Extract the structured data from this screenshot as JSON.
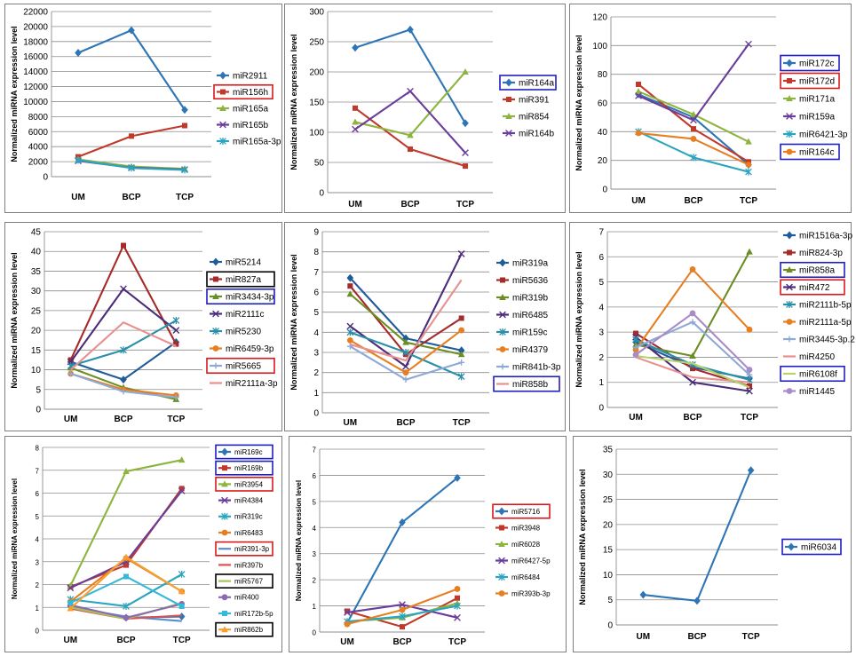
{
  "x_categories": [
    "UM",
    "BCP",
    "TCP"
  ],
  "ylabel": "Normalized miRNA expression level",
  "chart_data": [
    {
      "type": "line",
      "ylim": [
        0,
        22000
      ],
      "ytick_step": 2000,
      "categories": [
        "UM",
        "BCP",
        "TCP"
      ],
      "ylabel": "Normalized miRNA expression level",
      "series": [
        {
          "name": "miR2911",
          "color": "#2E75B6",
          "marker": "diamond",
          "values": [
            16500,
            19500,
            8900
          ],
          "highlight": null
        },
        {
          "name": "miR156h",
          "color": "#C0392B",
          "marker": "square",
          "values": [
            2650,
            5400,
            6800
          ],
          "highlight": "red"
        },
        {
          "name": "miR165a",
          "color": "#8DB43E",
          "marker": "triangle",
          "values": [
            2300,
            1350,
            1050
          ],
          "highlight": null
        },
        {
          "name": "miR165b",
          "color": "#6A3D9A",
          "marker": "x",
          "values": [
            2100,
            1200,
            950
          ],
          "highlight": null
        },
        {
          "name": "miR165a-3p",
          "color": "#2AA5C0",
          "marker": "star",
          "values": [
            2200,
            1150,
            900
          ],
          "highlight": null
        }
      ]
    },
    {
      "type": "line",
      "ylim": [
        0,
        300
      ],
      "ytick_step": 50,
      "categories": [
        "UM",
        "BCP",
        "TCP"
      ],
      "ylabel": "Normalized miRNA expression level",
      "series": [
        {
          "name": "miR164a",
          "color": "#2E75B6",
          "marker": "diamond",
          "values": [
            240,
            270,
            115
          ],
          "highlight": "blue"
        },
        {
          "name": "miR391",
          "color": "#C0392B",
          "marker": "square",
          "values": [
            140,
            72,
            44
          ],
          "highlight": null
        },
        {
          "name": "miR854",
          "color": "#8DB43E",
          "marker": "triangle",
          "values": [
            117,
            95,
            200
          ],
          "highlight": null
        },
        {
          "name": "miR164b",
          "color": "#6A3D9A",
          "marker": "x",
          "values": [
            105,
            168,
            66
          ],
          "highlight": null
        }
      ]
    },
    {
      "type": "line",
      "ylim": [
        0,
        120
      ],
      "ytick_step": 20,
      "categories": [
        "UM",
        "BCP",
        "TCP"
      ],
      "ylabel": "Normalized miRNA expression level",
      "series": [
        {
          "name": "miR172c",
          "color": "#2E75B6",
          "marker": "diamond",
          "values": [
            66,
            50,
            17
          ],
          "highlight": "blue"
        },
        {
          "name": "miR172d",
          "color": "#C0392B",
          "marker": "square",
          "values": [
            73,
            42,
            19
          ],
          "highlight": "red"
        },
        {
          "name": "miR171a",
          "color": "#8DB43E",
          "marker": "triangle",
          "values": [
            68,
            52,
            33
          ],
          "highlight": null
        },
        {
          "name": "miR159a",
          "color": "#6A3D9A",
          "marker": "x",
          "values": [
            65,
            48,
            101
          ],
          "highlight": null
        },
        {
          "name": "miR6421-3p",
          "color": "#2AA5C0",
          "marker": "star",
          "values": [
            40,
            22,
            12
          ],
          "highlight": null
        },
        {
          "name": "miR164c",
          "color": "#E67E22",
          "marker": "circle",
          "values": [
            39,
            35,
            17
          ],
          "highlight": "blue"
        }
      ]
    },
    {
      "type": "line",
      "ylim": [
        0,
        45
      ],
      "ytick_step": 5,
      "categories": [
        "UM",
        "BCP",
        "TCP"
      ],
      "ylabel": "Normalized miRNA expression level",
      "series": [
        {
          "name": "miR5214",
          "color": "#1F5C99",
          "marker": "diamond",
          "values": [
            12,
            7.5,
            17
          ],
          "highlight": null
        },
        {
          "name": "miR827a",
          "color": "#A52A2A",
          "marker": "square",
          "values": [
            12.5,
            41.5,
            16.5
          ],
          "highlight": "black"
        },
        {
          "name": "miR3434-3p",
          "color": "#6B8E23",
          "marker": "triangle",
          "values": [
            10.5,
            5.5,
            2.5
          ],
          "highlight": "blue"
        },
        {
          "name": "miR2111c",
          "color": "#4B2C7A",
          "marker": "x",
          "values": [
            12,
            30.5,
            20
          ],
          "highlight": null
        },
        {
          "name": "miR5230",
          "color": "#2A8FA8",
          "marker": "star",
          "values": [
            11,
            15,
            22.5
          ],
          "highlight": null
        },
        {
          "name": "miR6459-3p",
          "color": "#E67E22",
          "marker": "circle",
          "values": [
            9,
            5,
            3.5
          ],
          "highlight": null
        },
        {
          "name": "miR5665",
          "color": "#8DA9D6",
          "marker": "plus",
          "values": [
            9,
            4.5,
            3
          ],
          "highlight": "red"
        },
        {
          "name": "miR2111a-3p",
          "color": "#E89090",
          "marker": "none",
          "values": [
            10,
            22,
            16
          ],
          "highlight": null
        }
      ]
    },
    {
      "type": "line",
      "ylim": [
        0,
        9
      ],
      "ytick_step": 1,
      "categories": [
        "UM",
        "BCP",
        "TCP"
      ],
      "ylabel": "Normalized miRNA expression level",
      "series": [
        {
          "name": "miR319a",
          "color": "#1F5C99",
          "marker": "diamond",
          "values": [
            6.7,
            3.7,
            3.1
          ],
          "highlight": null
        },
        {
          "name": "miR5636",
          "color": "#A52A2A",
          "marker": "square",
          "values": [
            6.3,
            2.9,
            4.7
          ],
          "highlight": null
        },
        {
          "name": "miR319b",
          "color": "#6B8E23",
          "marker": "triangle",
          "values": [
            5.9,
            3.5,
            2.9
          ],
          "highlight": null
        },
        {
          "name": "miR6485",
          "color": "#4B2C7A",
          "marker": "x",
          "values": [
            4.3,
            2.3,
            7.9
          ],
          "highlight": null
        },
        {
          "name": "miR159c",
          "color": "#2A8FA8",
          "marker": "star",
          "values": [
            4.0,
            3.0,
            1.8
          ],
          "highlight": null
        },
        {
          "name": "miR4379",
          "color": "#E67E22",
          "marker": "circle",
          "values": [
            3.6,
            2.0,
            4.1
          ],
          "highlight": null
        },
        {
          "name": "miR841b-3p",
          "color": "#8DA9D6",
          "marker": "plus",
          "values": [
            3.3,
            1.65,
            2.5
          ],
          "highlight": null
        },
        {
          "name": "miR858b",
          "color": "#E89090",
          "marker": "none",
          "values": [
            3.4,
            2.6,
            6.6
          ],
          "highlight": "blue"
        }
      ]
    },
    {
      "type": "line",
      "ylim": [
        0,
        7
      ],
      "ytick_step": 1,
      "categories": [
        "UM",
        "BCP",
        "TCP"
      ],
      "ylabel": "Normalized miRNA expression level",
      "series": [
        {
          "name": "miR1516a-3p",
          "color": "#1F5C99",
          "marker": "diamond",
          "values": [
            2.6,
            1.6,
            1.15
          ],
          "highlight": null
        },
        {
          "name": "miR824-3p",
          "color": "#A52A2A",
          "marker": "square",
          "values": [
            2.95,
            1.55,
            0.85
          ],
          "highlight": null
        },
        {
          "name": "miR858a",
          "color": "#6B8E23",
          "marker": "triangle",
          "values": [
            2.5,
            2.05,
            6.2
          ],
          "highlight": "blue"
        },
        {
          "name": "miR472",
          "color": "#4B2C7A",
          "marker": "x",
          "values": [
            2.8,
            1.0,
            0.65
          ],
          "highlight": "red"
        },
        {
          "name": "miR2111b-5p",
          "color": "#2A8FA8",
          "marker": "star",
          "values": [
            2.7,
            1.7,
            1.1
          ],
          "highlight": null
        },
        {
          "name": "miR2111a-5p",
          "color": "#E67E22",
          "marker": "circle",
          "values": [
            2.3,
            5.5,
            3.1
          ],
          "highlight": null
        },
        {
          "name": "miR3445-3p.2",
          "color": "#8DA9D6",
          "marker": "plus",
          "values": [
            2.4,
            3.4,
            1.3
          ],
          "highlight": null
        },
        {
          "name": "miR4250",
          "color": "#E89090",
          "marker": "none",
          "values": [
            2.0,
            1.2,
            1.0
          ],
          "highlight": null
        },
        {
          "name": "miR6108f",
          "color": "#B5D36B",
          "marker": "none",
          "values": [
            2.05,
            1.75,
            0.8
          ],
          "highlight": "blue"
        },
        {
          "name": "miR1445",
          "color": "#A88BC7",
          "marker": "circle",
          "values": [
            2.1,
            3.75,
            1.5
          ],
          "highlight": null
        }
      ]
    },
    {
      "type": "line",
      "ylim": [
        0,
        8
      ],
      "ytick_step": 1,
      "categories": [
        "UM",
        "BCP",
        "TCP"
      ],
      "ylabel": "Normalized miRNA expression level",
      "series": [
        {
          "name": "miR169c",
          "color": "#2E75B6",
          "marker": "diamond",
          "values": [
            1.05,
            0.55,
            0.6
          ],
          "highlight": "blue"
        },
        {
          "name": "miR169b",
          "color": "#C0392B",
          "marker": "square",
          "values": [
            1.9,
            2.85,
            6.2
          ],
          "highlight": "blue"
        },
        {
          "name": "miR3954",
          "color": "#8DB43E",
          "marker": "triangle",
          "values": [
            1.95,
            6.95,
            7.45
          ],
          "highlight": "red"
        },
        {
          "name": "miR4384",
          "color": "#6A3D9A",
          "marker": "x",
          "values": [
            1.85,
            3.0,
            6.1
          ],
          "highlight": null
        },
        {
          "name": "miR319c",
          "color": "#2AA5C0",
          "marker": "star",
          "values": [
            1.35,
            1.05,
            2.45
          ],
          "highlight": null
        },
        {
          "name": "miR6483",
          "color": "#E67E22",
          "marker": "circle",
          "values": [
            1.25,
            3.15,
            1.7
          ],
          "highlight": null
        },
        {
          "name": "miR391-3p",
          "color": "#5B8DD1",
          "marker": "none",
          "values": [
            1.0,
            0.6,
            0.4
          ],
          "highlight": "red"
        },
        {
          "name": "miR397b",
          "color": "#E05050",
          "marker": "none",
          "values": [
            0.95,
            0.5,
            0.65
          ],
          "highlight": null
        },
        {
          "name": "miR5767",
          "color": "#A5C55A",
          "marker": "none",
          "values": [
            1.0,
            0.5,
            1.2
          ],
          "highlight": "black"
        },
        {
          "name": "miR400",
          "color": "#8A6AB0",
          "marker": "circle",
          "values": [
            1.1,
            0.55,
            1.15
          ],
          "highlight": null
        },
        {
          "name": "miR172b-5p",
          "color": "#36B8D9",
          "marker": "square",
          "values": [
            1.2,
            2.35,
            1.05
          ],
          "highlight": null
        },
        {
          "name": "miR862b",
          "color": "#F5A030",
          "marker": "triangle",
          "values": [
            0.95,
            3.2,
            1.7
          ],
          "highlight": "black"
        }
      ]
    },
    {
      "type": "line",
      "ylim": [
        0,
        7
      ],
      "ytick_step": 1,
      "categories": [
        "UM",
        "BCP",
        "TCP"
      ],
      "ylabel": "Normalized miRNA expression level",
      "series": [
        {
          "name": "miR5716",
          "color": "#2E75B6",
          "marker": "diamond",
          "values": [
            0.35,
            4.2,
            5.9
          ],
          "highlight": "red"
        },
        {
          "name": "miR3948",
          "color": "#C0392B",
          "marker": "square",
          "values": [
            0.8,
            0.2,
            1.3
          ],
          "highlight": null
        },
        {
          "name": "miR6028",
          "color": "#8DB43E",
          "marker": "triangle",
          "values": [
            0.4,
            0.55,
            1.1
          ],
          "highlight": null
        },
        {
          "name": "miR6427-5p",
          "color": "#6A3D9A",
          "marker": "x",
          "values": [
            0.75,
            1.05,
            0.55
          ],
          "highlight": null
        },
        {
          "name": "miR6484",
          "color": "#2AA5C0",
          "marker": "star",
          "values": [
            0.4,
            0.6,
            1.0
          ],
          "highlight": null
        },
        {
          "name": "miR393b-3p",
          "color": "#E67E22",
          "marker": "circle",
          "values": [
            0.3,
            0.85,
            1.65
          ],
          "highlight": null
        }
      ]
    },
    {
      "type": "line",
      "ylim": [
        0,
        35
      ],
      "ytick_step": 5,
      "categories": [
        "UM",
        "BCP",
        "TCP"
      ],
      "ylabel": "Normalized miRNA expression level",
      "series": [
        {
          "name": "miR6034",
          "color": "#2E75B6",
          "marker": "diamond",
          "values": [
            6,
            4.8,
            30.8
          ],
          "highlight": "blue"
        }
      ]
    }
  ]
}
